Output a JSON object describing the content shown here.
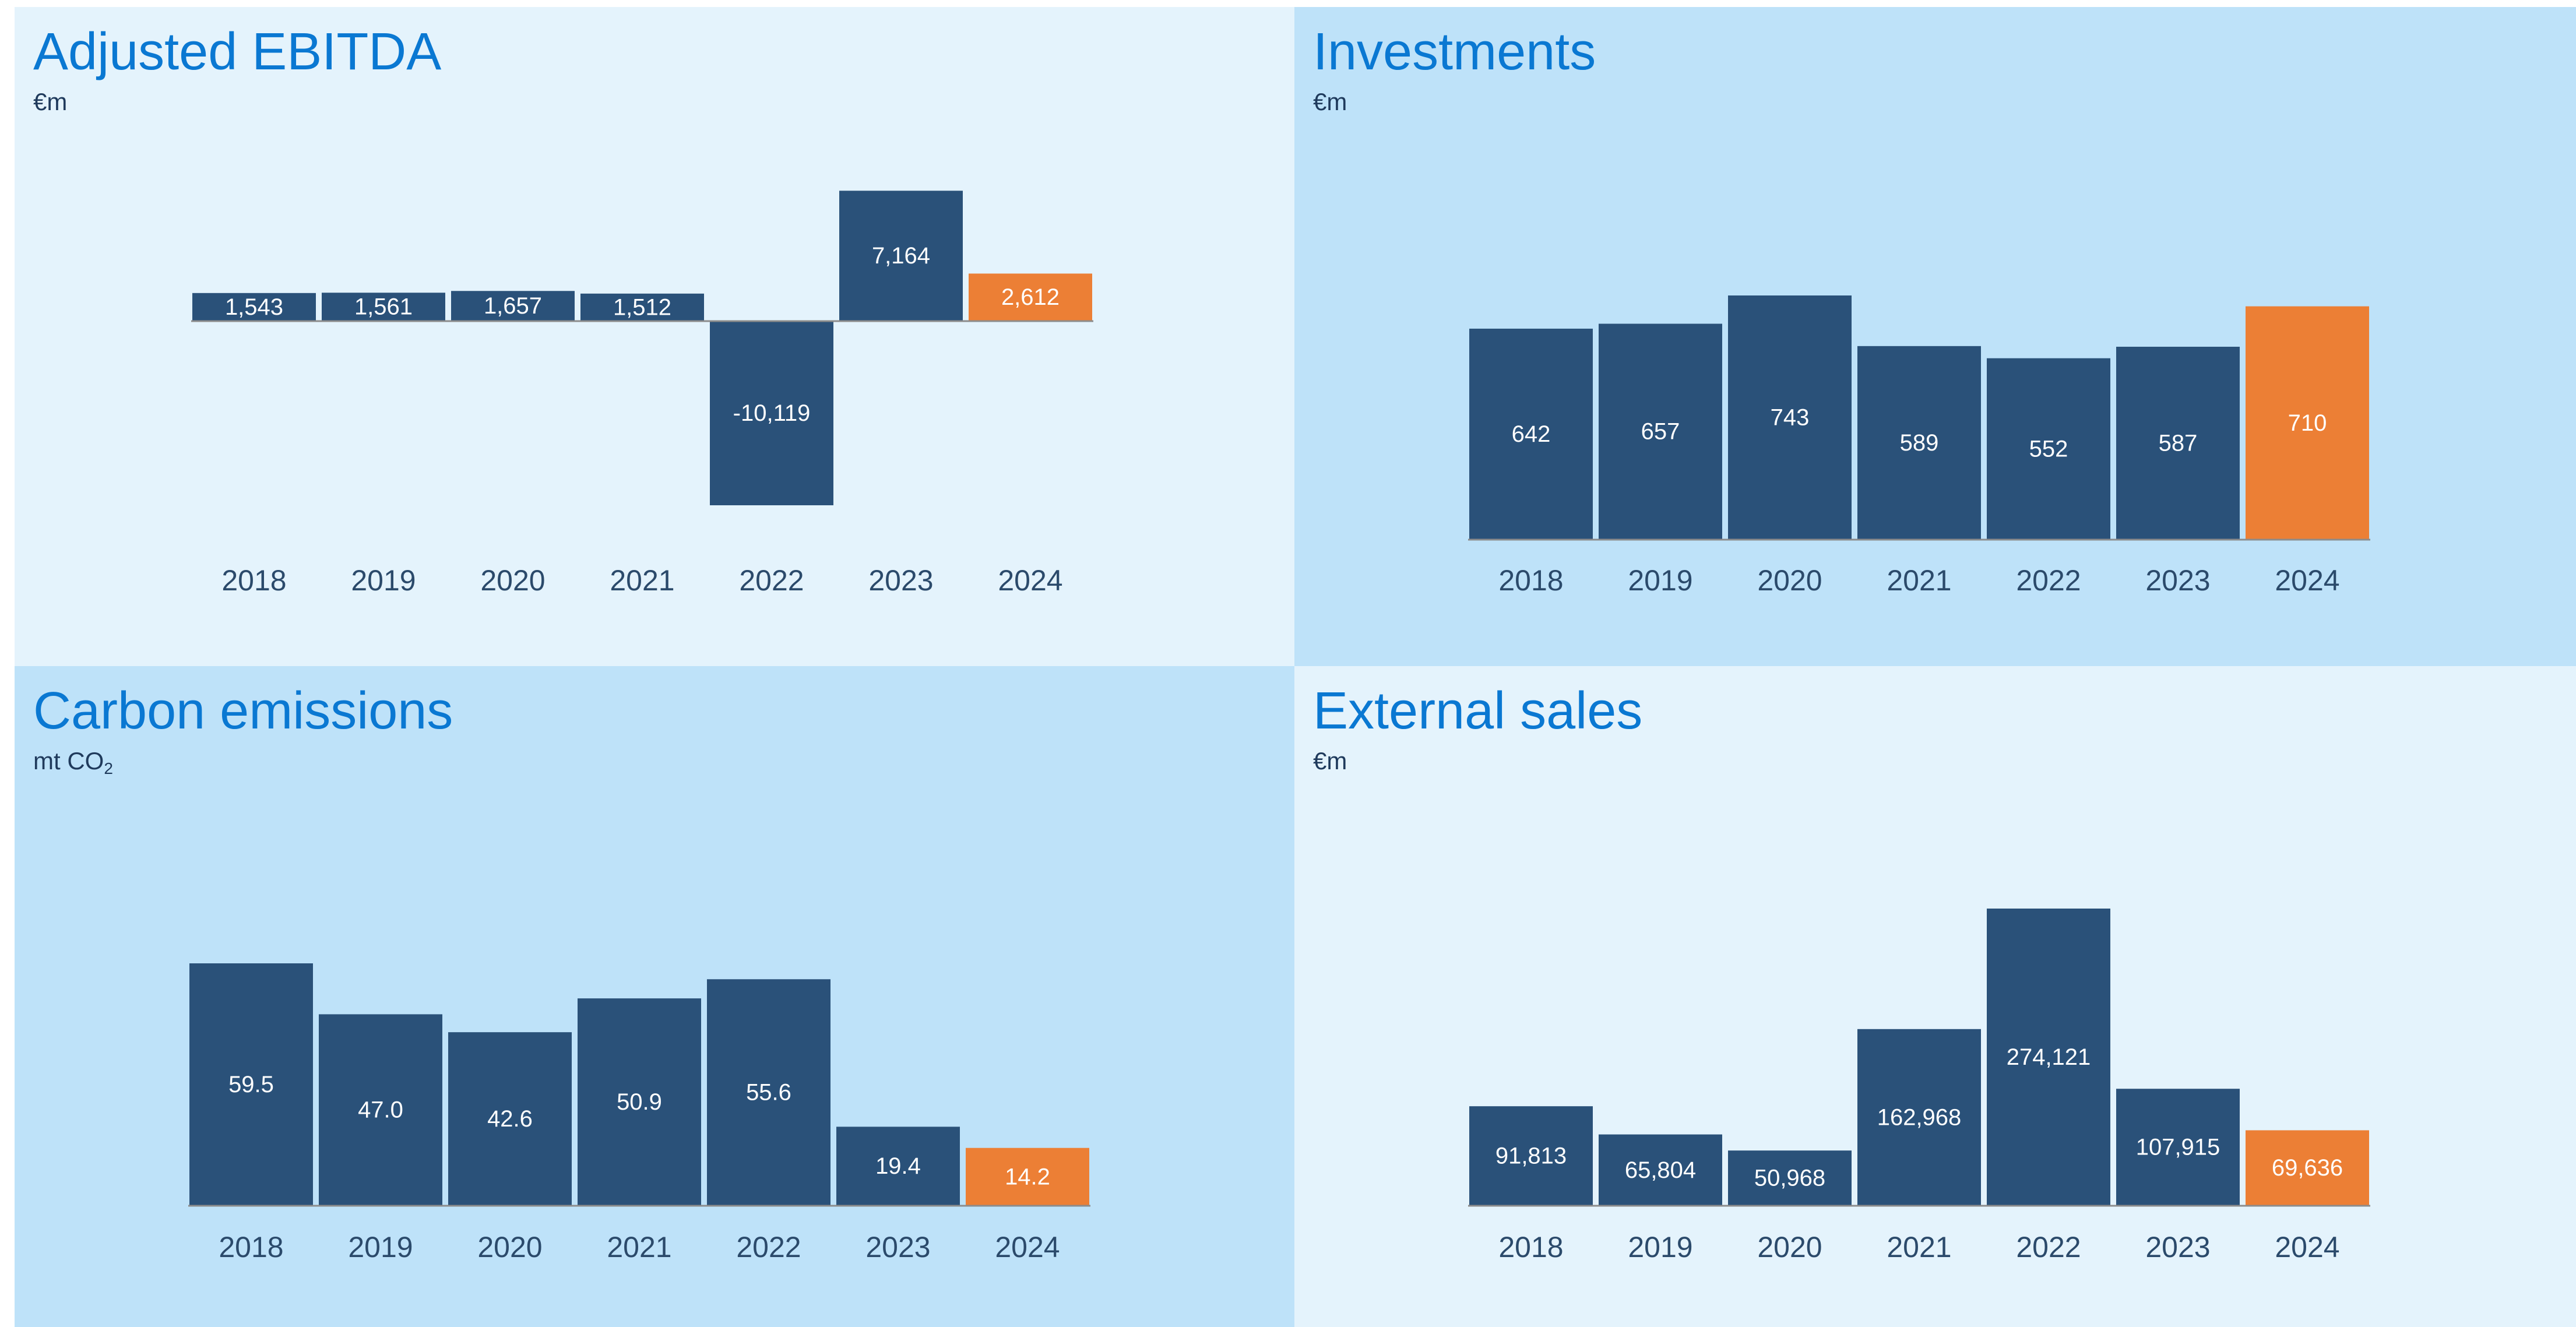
{
  "colors": {
    "bar": "#2a5179",
    "highlight": "#ec7f35",
    "panel_light": "#e4f3fc",
    "panel_medium": "#bee2f9",
    "title": "#0a78d2",
    "baseline": "#8c8c8c"
  },
  "chart_data": [
    {
      "type": "bar",
      "title": "Adjusted EBITDA",
      "unit": "€m",
      "categories": [
        "2018",
        "2019",
        "2020",
        "2021",
        "2022",
        "2023",
        "2024"
      ],
      "values": [
        1543,
        1561,
        1657,
        1512,
        -10119,
        7164,
        2612
      ],
      "value_labels": [
        "1,543",
        "1,561",
        "1,657",
        "1,512",
        "-10,119",
        "7,164",
        "2,612"
      ],
      "highlight": "2024",
      "ylim": [
        -10119,
        7164
      ],
      "grid": false,
      "legend": "none"
    },
    {
      "type": "bar",
      "title": "Investments",
      "unit": "€m",
      "categories": [
        "2018",
        "2019",
        "2020",
        "2021",
        "2022",
        "2023",
        "2024"
      ],
      "values": [
        642,
        657,
        743,
        589,
        552,
        587,
        710
      ],
      "value_labels": [
        "642",
        "657",
        "743",
        "589",
        "552",
        "587",
        "710"
      ],
      "highlight": "2024",
      "ylim": [
        0,
        743
      ],
      "grid": false,
      "legend": "none"
    },
    {
      "type": "bar",
      "title": "Carbon emissions",
      "unit": "mt CO",
      "unit_sub": "2",
      "categories": [
        "2018",
        "2019",
        "2020",
        "2021",
        "2022",
        "2023",
        "2024"
      ],
      "values": [
        59.5,
        47.0,
        42.6,
        50.9,
        55.6,
        19.4,
        14.2
      ],
      "value_labels": [
        "59.5",
        "47.0",
        "42.6",
        "50.9",
        "55.6",
        "19.4",
        "14.2"
      ],
      "highlight": "2024",
      "ylim": [
        0,
        59.5
      ],
      "grid": false,
      "legend": "none"
    },
    {
      "type": "bar",
      "title": "External sales",
      "unit": "€m",
      "categories": [
        "2018",
        "2019",
        "2020",
        "2021",
        "2022",
        "2023",
        "2024"
      ],
      "values": [
        91813,
        65804,
        50968,
        162968,
        274121,
        107915,
        69636
      ],
      "value_labels": [
        "91,813",
        "65,804",
        "50,968",
        "162,968",
        "274,121",
        "107,915",
        "69,636"
      ],
      "highlight": "2024",
      "ylim": [
        0,
        274121
      ],
      "grid": false,
      "legend": "none"
    }
  ]
}
